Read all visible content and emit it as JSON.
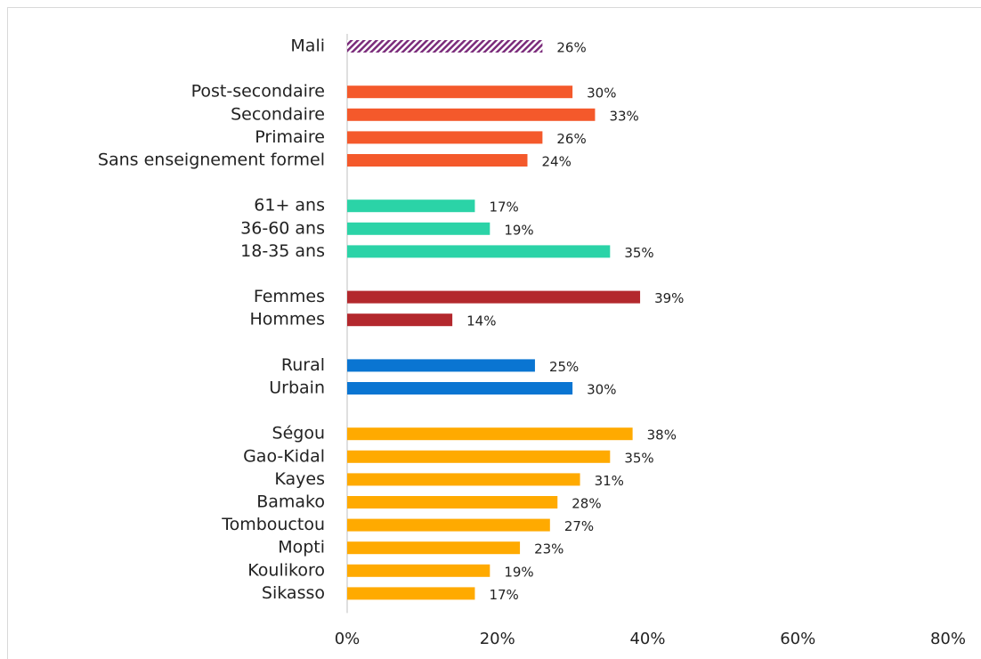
{
  "chart_data": {
    "type": "hbar",
    "categories": [
      "Mali",
      null,
      "Post-secondaire",
      "Secondaire",
      "Primaire",
      "Sans enseignement formel",
      null,
      "61+ ans",
      "36-60 ans",
      "18-35 ans",
      null,
      "Femmes",
      "Hommes",
      null,
      "Rural",
      "Urbain",
      null,
      "Ségou",
      "Gao-Kidal",
      "Kayes",
      "Bamako",
      "Tombouctou",
      "Mopti",
      "Koulikoro",
      "Sikasso"
    ],
    "values": [
      26,
      null,
      30,
      33,
      26,
      24,
      null,
      17,
      19,
      35,
      null,
      39,
      14,
      null,
      25,
      30,
      null,
      38,
      35,
      31,
      28,
      27,
      23,
      19,
      17
    ],
    "value_labels": [
      "26%",
      null,
      "30%",
      "33%",
      "26%",
      "24%",
      null,
      "17%",
      "19%",
      "35%",
      null,
      "39%",
      "14%",
      null,
      "25%",
      "30%",
      null,
      "38%",
      "35%",
      "31%",
      "28%",
      "27%",
      "23%",
      "19%",
      "17%"
    ],
    "colors": [
      "#7b2c7b",
      null,
      "#f4592b",
      "#f4592b",
      "#f4592b",
      "#f4592b",
      null,
      "#2bd3a7",
      "#2bd3a7",
      "#2bd3a7",
      null,
      "#b3282d",
      "#b3282d",
      null,
      "#0a75d2",
      "#0a75d2",
      null,
      "#ffaa00",
      "#ffaa00",
      "#ffaa00",
      "#ffaa00",
      "#ffaa00",
      "#ffaa00",
      "#ffaa00",
      "#ffaa00"
    ],
    "hatched": [
      0
    ],
    "xlim": [
      0,
      80
    ],
    "xticks": [
      {
        "value": 0,
        "label": "0%"
      },
      {
        "value": 20,
        "label": "20%"
      },
      {
        "value": 40,
        "label": "40%"
      },
      {
        "value": 60,
        "label": "60%"
      },
      {
        "value": 80,
        "label": "80%"
      }
    ]
  }
}
